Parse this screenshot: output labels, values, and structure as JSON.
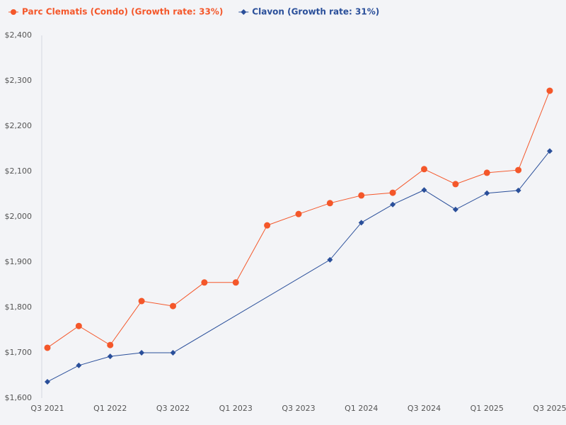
{
  "chart_data": {
    "type": "line",
    "categories": [
      "Q3 2021",
      null,
      "Q1 2022",
      null,
      "Q3 2022",
      null,
      "Q1 2023",
      null,
      "Q3 2023",
      null,
      "Q1 2024",
      null,
      "Q3 2024",
      null,
      "Q1 2025",
      null,
      "Q3 2025"
    ],
    "series": [
      {
        "name": "Parc Clematis (Condo) (Growth rate: 33%)",
        "color": "#f4572a",
        "marker": "circle",
        "values": [
          1711,
          1759,
          1717,
          1814,
          1803,
          1855,
          1855,
          1981,
          2006,
          2030,
          2047,
          2053,
          2105,
          2072,
          2097,
          2103,
          2278
        ]
      },
      {
        "name": "Clavon (Growth rate: 31%)",
        "color": "#2a4f9a",
        "marker": "diamond",
        "values": [
          1636,
          1672,
          1692,
          1700,
          1700,
          null,
          null,
          null,
          null,
          1905,
          1987,
          2027,
          2059,
          2016,
          2052,
          2058,
          2145
        ]
      }
    ],
    "connect_gaps": true,
    "ylim": [
      1600,
      2400
    ],
    "yticks": [
      {
        "value": 1600,
        "label": "$1,600"
      },
      {
        "value": 1700,
        "label": "$1,700"
      },
      {
        "value": 1800,
        "label": "$1,800"
      },
      {
        "value": 1900,
        "label": "$1,900"
      },
      {
        "value": 2000,
        "label": "$2,000"
      },
      {
        "value": 2100,
        "label": "$2,100"
      },
      {
        "value": 2200,
        "label": "$2,200"
      },
      {
        "value": 2300,
        "label": "$2,300"
      },
      {
        "value": 2400,
        "label": "$2,400"
      }
    ],
    "grid": false
  }
}
